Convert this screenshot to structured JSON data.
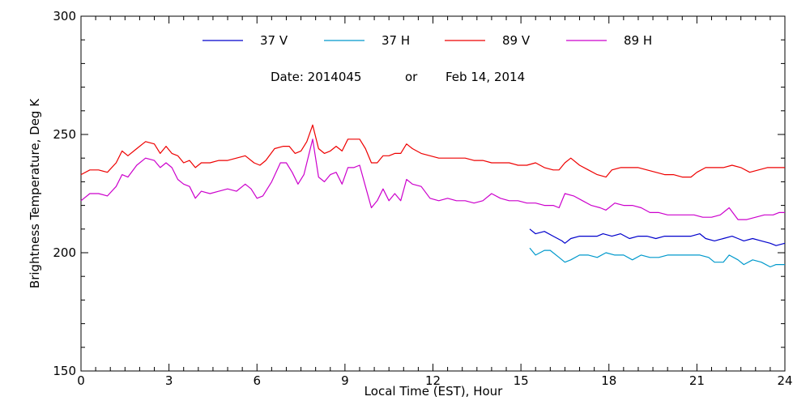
{
  "chart_data": {
    "type": "line",
    "annotation": {
      "date_label": "Date: 2014045",
      "or_label": "or",
      "date_text": "Feb 14, 2014"
    },
    "xlabel": "Local Time (EST), Hour",
    "ylabel": "Brightness Temperature, Deg K",
    "xlim": [
      0,
      24
    ],
    "ylim": [
      150,
      300
    ],
    "x_ticks": [
      0,
      3,
      6,
      9,
      12,
      15,
      18,
      21,
      24
    ],
    "y_ticks": [
      150,
      200,
      250,
      300
    ],
    "legend_position": "top",
    "grid": false,
    "series": [
      {
        "name": "37 V",
        "color": "#0000cc",
        "points": [
          [
            15.3,
            210
          ],
          [
            15.5,
            208
          ],
          [
            15.8,
            209
          ],
          [
            16.1,
            207
          ],
          [
            16.4,
            205
          ],
          [
            16.5,
            204
          ],
          [
            16.7,
            206
          ],
          [
            17.0,
            207
          ],
          [
            17.3,
            207
          ],
          [
            17.6,
            207
          ],
          [
            17.8,
            208
          ],
          [
            18.1,
            207
          ],
          [
            18.4,
            208
          ],
          [
            18.7,
            206
          ],
          [
            19.0,
            207
          ],
          [
            19.3,
            207
          ],
          [
            19.6,
            206
          ],
          [
            19.9,
            207
          ],
          [
            20.2,
            207
          ],
          [
            20.5,
            207
          ],
          [
            20.8,
            207
          ],
          [
            21.1,
            208
          ],
          [
            21.3,
            206
          ],
          [
            21.6,
            205
          ],
          [
            21.9,
            206
          ],
          [
            22.2,
            207
          ],
          [
            22.4,
            206
          ],
          [
            22.6,
            205
          ],
          [
            22.9,
            206
          ],
          [
            23.2,
            205
          ],
          [
            23.5,
            204
          ],
          [
            23.7,
            203
          ],
          [
            24.0,
            204
          ]
        ]
      },
      {
        "name": "37 H",
        "color": "#0099cc",
        "points": [
          [
            15.3,
            202
          ],
          [
            15.5,
            199
          ],
          [
            15.8,
            201
          ],
          [
            16.0,
            201
          ],
          [
            16.3,
            198
          ],
          [
            16.5,
            196
          ],
          [
            16.7,
            197
          ],
          [
            17.0,
            199
          ],
          [
            17.3,
            199
          ],
          [
            17.6,
            198
          ],
          [
            17.9,
            200
          ],
          [
            18.2,
            199
          ],
          [
            18.5,
            199
          ],
          [
            18.8,
            197
          ],
          [
            19.1,
            199
          ],
          [
            19.4,
            198
          ],
          [
            19.7,
            198
          ],
          [
            20.0,
            199
          ],
          [
            20.3,
            199
          ],
          [
            20.6,
            199
          ],
          [
            20.9,
            199
          ],
          [
            21.1,
            199
          ],
          [
            21.4,
            198
          ],
          [
            21.6,
            196
          ],
          [
            21.9,
            196
          ],
          [
            22.1,
            199
          ],
          [
            22.4,
            197
          ],
          [
            22.6,
            195
          ],
          [
            22.9,
            197
          ],
          [
            23.2,
            196
          ],
          [
            23.5,
            194
          ],
          [
            23.7,
            195
          ],
          [
            24.0,
            195
          ]
        ]
      },
      {
        "name": "89 V",
        "color": "#ee0000",
        "points": [
          [
            0.0,
            233
          ],
          [
            0.3,
            235
          ],
          [
            0.6,
            235
          ],
          [
            0.9,
            234
          ],
          [
            1.2,
            238
          ],
          [
            1.4,
            243
          ],
          [
            1.6,
            241
          ],
          [
            1.9,
            244
          ],
          [
            2.2,
            247
          ],
          [
            2.5,
            246
          ],
          [
            2.7,
            242
          ],
          [
            2.9,
            245
          ],
          [
            3.1,
            242
          ],
          [
            3.3,
            241
          ],
          [
            3.5,
            238
          ],
          [
            3.7,
            239
          ],
          [
            3.9,
            236
          ],
          [
            4.1,
            238
          ],
          [
            4.4,
            238
          ],
          [
            4.7,
            239
          ],
          [
            5.0,
            239
          ],
          [
            5.3,
            240
          ],
          [
            5.6,
            241
          ],
          [
            5.9,
            238
          ],
          [
            6.1,
            237
          ],
          [
            6.3,
            239
          ],
          [
            6.6,
            244
          ],
          [
            6.9,
            245
          ],
          [
            7.1,
            245
          ],
          [
            7.3,
            242
          ],
          [
            7.5,
            243
          ],
          [
            7.7,
            247
          ],
          [
            7.9,
            254
          ],
          [
            8.1,
            244
          ],
          [
            8.3,
            242
          ],
          [
            8.5,
            243
          ],
          [
            8.7,
            245
          ],
          [
            8.9,
            243
          ],
          [
            9.1,
            248
          ],
          [
            9.3,
            248
          ],
          [
            9.5,
            248
          ],
          [
            9.7,
            244
          ],
          [
            9.9,
            238
          ],
          [
            10.1,
            238
          ],
          [
            10.3,
            241
          ],
          [
            10.5,
            241
          ],
          [
            10.7,
            242
          ],
          [
            10.9,
            242
          ],
          [
            11.1,
            246
          ],
          [
            11.3,
            244
          ],
          [
            11.6,
            242
          ],
          [
            11.9,
            241
          ],
          [
            12.2,
            240
          ],
          [
            12.5,
            240
          ],
          [
            12.8,
            240
          ],
          [
            13.1,
            240
          ],
          [
            13.4,
            239
          ],
          [
            13.7,
            239
          ],
          [
            14.0,
            238
          ],
          [
            14.3,
            238
          ],
          [
            14.6,
            238
          ],
          [
            14.9,
            237
          ],
          [
            15.2,
            237
          ],
          [
            15.5,
            238
          ],
          [
            15.8,
            236
          ],
          [
            16.1,
            235
          ],
          [
            16.3,
            235
          ],
          [
            16.5,
            238
          ],
          [
            16.7,
            240
          ],
          [
            17.0,
            237
          ],
          [
            17.3,
            235
          ],
          [
            17.6,
            233
          ],
          [
            17.9,
            232
          ],
          [
            18.1,
            235
          ],
          [
            18.4,
            236
          ],
          [
            18.7,
            236
          ],
          [
            19.0,
            236
          ],
          [
            19.3,
            235
          ],
          [
            19.6,
            234
          ],
          [
            19.9,
            233
          ],
          [
            20.2,
            233
          ],
          [
            20.5,
            232
          ],
          [
            20.8,
            232
          ],
          [
            21.0,
            234
          ],
          [
            21.3,
            236
          ],
          [
            21.6,
            236
          ],
          [
            21.9,
            236
          ],
          [
            22.2,
            237
          ],
          [
            22.5,
            236
          ],
          [
            22.8,
            234
          ],
          [
            23.1,
            235
          ],
          [
            23.4,
            236
          ],
          [
            23.7,
            236
          ],
          [
            24.0,
            236
          ]
        ]
      },
      {
        "name": "89 H",
        "color": "#cc00cc",
        "points": [
          [
            0.0,
            222
          ],
          [
            0.3,
            225
          ],
          [
            0.6,
            225
          ],
          [
            0.9,
            224
          ],
          [
            1.2,
            228
          ],
          [
            1.4,
            233
          ],
          [
            1.6,
            232
          ],
          [
            1.9,
            237
          ],
          [
            2.2,
            240
          ],
          [
            2.5,
            239
          ],
          [
            2.7,
            236
          ],
          [
            2.9,
            238
          ],
          [
            3.1,
            236
          ],
          [
            3.3,
            231
          ],
          [
            3.5,
            229
          ],
          [
            3.7,
            228
          ],
          [
            3.9,
            223
          ],
          [
            4.1,
            226
          ],
          [
            4.4,
            225
          ],
          [
            4.7,
            226
          ],
          [
            5.0,
            227
          ],
          [
            5.3,
            226
          ],
          [
            5.6,
            229
          ],
          [
            5.8,
            227
          ],
          [
            6.0,
            223
          ],
          [
            6.2,
            224
          ],
          [
            6.5,
            230
          ],
          [
            6.8,
            238
          ],
          [
            7.0,
            238
          ],
          [
            7.2,
            234
          ],
          [
            7.4,
            229
          ],
          [
            7.6,
            233
          ],
          [
            7.9,
            248
          ],
          [
            8.1,
            232
          ],
          [
            8.3,
            230
          ],
          [
            8.5,
            233
          ],
          [
            8.7,
            234
          ],
          [
            8.9,
            229
          ],
          [
            9.1,
            236
          ],
          [
            9.3,
            236
          ],
          [
            9.5,
            237
          ],
          [
            9.7,
            228
          ],
          [
            9.9,
            219
          ],
          [
            10.1,
            222
          ],
          [
            10.3,
            227
          ],
          [
            10.5,
            222
          ],
          [
            10.7,
            225
          ],
          [
            10.9,
            222
          ],
          [
            11.1,
            231
          ],
          [
            11.3,
            229
          ],
          [
            11.6,
            228
          ],
          [
            11.9,
            223
          ],
          [
            12.2,
            222
          ],
          [
            12.5,
            223
          ],
          [
            12.8,
            222
          ],
          [
            13.1,
            222
          ],
          [
            13.4,
            221
          ],
          [
            13.7,
            222
          ],
          [
            14.0,
            225
          ],
          [
            14.3,
            223
          ],
          [
            14.6,
            222
          ],
          [
            14.9,
            222
          ],
          [
            15.2,
            221
          ],
          [
            15.5,
            221
          ],
          [
            15.8,
            220
          ],
          [
            16.1,
            220
          ],
          [
            16.3,
            219
          ],
          [
            16.5,
            225
          ],
          [
            16.8,
            224
          ],
          [
            17.1,
            222
          ],
          [
            17.4,
            220
          ],
          [
            17.7,
            219
          ],
          [
            17.9,
            218
          ],
          [
            18.2,
            221
          ],
          [
            18.5,
            220
          ],
          [
            18.8,
            220
          ],
          [
            19.1,
            219
          ],
          [
            19.4,
            217
          ],
          [
            19.7,
            217
          ],
          [
            20.0,
            216
          ],
          [
            20.3,
            216
          ],
          [
            20.6,
            216
          ],
          [
            20.9,
            216
          ],
          [
            21.2,
            215
          ],
          [
            21.5,
            215
          ],
          [
            21.8,
            216
          ],
          [
            22.1,
            219
          ],
          [
            22.4,
            214
          ],
          [
            22.7,
            214
          ],
          [
            23.0,
            215
          ],
          [
            23.3,
            216
          ],
          [
            23.6,
            216
          ],
          [
            23.8,
            217
          ],
          [
            24.0,
            217
          ]
        ]
      }
    ]
  }
}
